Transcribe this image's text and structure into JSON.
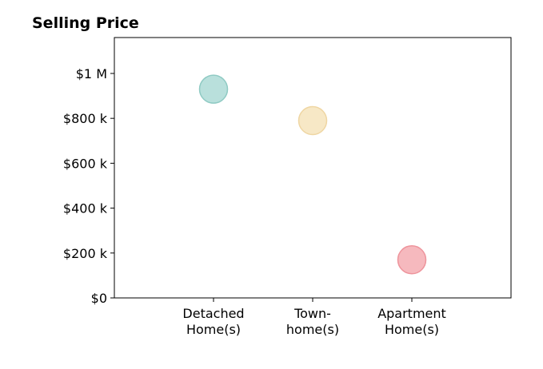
{
  "chart_data": {
    "type": "scatter",
    "title": "Selling Price",
    "xlabel": "",
    "ylabel": "",
    "categories": [
      [
        "Detached",
        "Home(s)"
      ],
      [
        "Town-",
        "home(s)"
      ],
      [
        "Apartment",
        "Home(s)"
      ]
    ],
    "values": [
      930000,
      790000,
      170000
    ],
    "colors": [
      "#a8d8d3",
      "#f5e2b8",
      "#f4a8ae"
    ],
    "edge_colors": [
      "#8fcac3",
      "#efd6a3",
      "#ee949c"
    ],
    "ylim": [
      0,
      1160000
    ],
    "xlim": [
      0,
      4
    ],
    "y_ticks": [
      {
        "value": 0,
        "label": "$0"
      },
      {
        "value": 200000,
        "label": "$200 k"
      },
      {
        "value": 400000,
        "label": "$400 k"
      },
      {
        "value": 600000,
        "label": "$600 k"
      },
      {
        "value": 800000,
        "label": "$800 k"
      },
      {
        "value": 1000000,
        "label": "$1 M"
      }
    ],
    "grid": false,
    "legend": "none"
  }
}
